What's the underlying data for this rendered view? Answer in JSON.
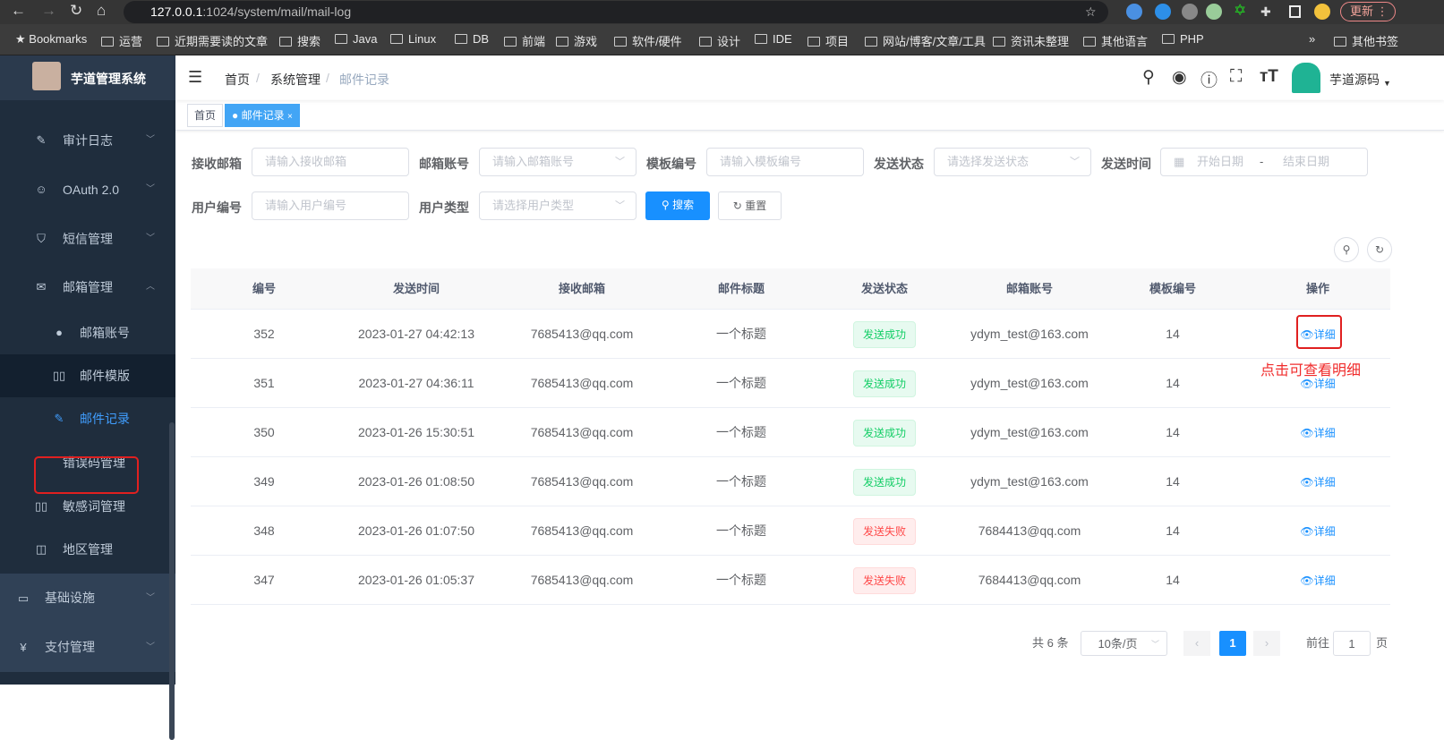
{
  "browser": {
    "url_host": "127.0.0.1",
    "url_rest": ":1024/system/mail/mail-log",
    "update_label": "更新",
    "bookmarks": [
      "Bookmarks",
      "运营",
      "近期需要读的文章",
      "搜索",
      "Java",
      "Linux",
      "DB",
      "前端",
      "游戏",
      "软件/硬件",
      "设计",
      "IDE",
      "项目",
      "网站/博客/文章/工具",
      "资讯未整理",
      "其他语言",
      "PHP",
      "»",
      "其他书签"
    ]
  },
  "sidebar": {
    "title": "芋道管理系统",
    "items": [
      {
        "label": "审计日志",
        "icon": "edit-icon"
      },
      {
        "label": "OAuth 2.0",
        "icon": "robot-icon"
      },
      {
        "label": "短信管理",
        "icon": "shield-icon"
      },
      {
        "label": "邮箱管理",
        "icon": "mail-icon"
      },
      {
        "label": "邮箱账号",
        "icon": "user-icon"
      },
      {
        "label": "邮件模版",
        "icon": "book-icon"
      },
      {
        "label": "邮件记录",
        "icon": "edit-icon"
      },
      {
        "label": "错误码管理",
        "icon": "code-icon"
      },
      {
        "label": "敏感词管理",
        "icon": "book-icon"
      },
      {
        "label": "地区管理",
        "icon": "table-icon"
      },
      {
        "label": "基础设施",
        "icon": "monitor-icon"
      },
      {
        "label": "支付管理",
        "icon": "yen-icon"
      }
    ]
  },
  "header": {
    "breadcrumb": [
      "首页",
      "系统管理",
      "邮件记录"
    ],
    "user": "芋道源码"
  },
  "tags": [
    "首页",
    "邮件记录"
  ],
  "form": {
    "to_mail": {
      "label": "接收邮箱",
      "placeholder": "请输入接收邮箱"
    },
    "account": {
      "label": "邮箱账号",
      "placeholder": "请输入邮箱账号"
    },
    "template": {
      "label": "模板编号",
      "placeholder": "请输入模板编号"
    },
    "status": {
      "label": "发送状态",
      "placeholder": "请选择发送状态"
    },
    "time": {
      "label": "发送时间",
      "start": "开始日期",
      "sep": "-",
      "end": "结束日期"
    },
    "user_id": {
      "label": "用户编号",
      "placeholder": "请输入用户编号"
    },
    "user_type": {
      "label": "用户类型",
      "placeholder": "请选择用户类型"
    },
    "search": "搜索",
    "reset": "重置"
  },
  "table": {
    "columns": [
      "编号",
      "发送时间",
      "接收邮箱",
      "邮件标题",
      "发送状态",
      "邮箱账号",
      "模板编号",
      "操作"
    ],
    "rows": [
      [
        "352",
        "2023-01-27 04:42:13",
        "7685413@qq.com",
        "一个标题",
        "发送成功",
        "ydym_test@163.com",
        "14",
        "详细"
      ],
      [
        "351",
        "2023-01-27 04:36:11",
        "7685413@qq.com",
        "一个标题",
        "发送成功",
        "ydym_test@163.com",
        "14",
        "详细"
      ],
      [
        "350",
        "2023-01-26 15:30:51",
        "7685413@qq.com",
        "一个标题",
        "发送成功",
        "ydym_test@163.com",
        "14",
        "详细"
      ],
      [
        "349",
        "2023-01-26 01:08:50",
        "7685413@qq.com",
        "一个标题",
        "发送成功",
        "ydym_test@163.com",
        "14",
        "详细"
      ],
      [
        "348",
        "2023-01-26 01:07:50",
        "7685413@qq.com",
        "一个标题",
        "发送失败",
        "7684413@qq.com",
        "14",
        "详细"
      ],
      [
        "347",
        "2023-01-26 01:05:37",
        "7685413@qq.com",
        "一个标题",
        "发送失败",
        "7684413@qq.com",
        "14",
        "详细"
      ]
    ]
  },
  "annotation": "点击可查看明细",
  "pagination": {
    "total": "共 6 条",
    "size": "10条/页",
    "current": "1",
    "goto": "前往",
    "goto_value": "1",
    "page_unit": "页"
  },
  "colors": {
    "primary": "#1890ff",
    "success": "#13ce66",
    "danger": "#ff4949",
    "annotation": "#e02020"
  }
}
